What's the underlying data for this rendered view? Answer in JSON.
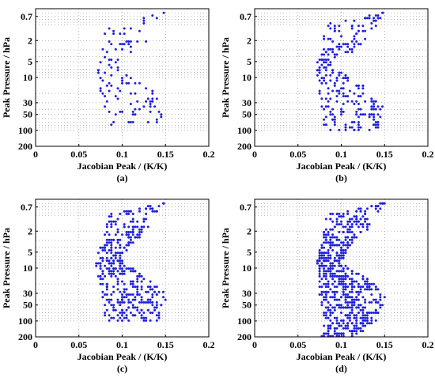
{
  "chart_data": [
    {
      "type": "scatter",
      "caption": "(a)",
      "xlabel": "Jacobian Peak / (K/K)",
      "ylabel": "Peak Pressure / hPa",
      "xlim": [
        0,
        0.2
      ],
      "ylim": [
        200,
        0.5
      ],
      "y_scale": "log",
      "x_ticks": [
        "0",
        "0.05",
        "0.1",
        "0.15",
        "0.2"
      ],
      "y_ticks": [
        "0.7",
        "2",
        "5",
        "10",
        "30",
        "50",
        "100",
        "200"
      ],
      "grid": true,
      "marker_color": "#1f1fe0",
      "x_range": [
        0.07,
        0.15
      ],
      "y_range": [
        0.6,
        80
      ],
      "approx_point_count": 110
    },
    {
      "type": "scatter",
      "caption": "(b)",
      "xlabel": "Jacobian Peak / (K/K)",
      "ylabel": "Peak Pressure / hPa",
      "xlim": [
        0,
        0.2
      ],
      "ylim": [
        200,
        0.5
      ],
      "y_scale": "log",
      "x_ticks": [
        "0",
        "0.05",
        "0.1",
        "0.15",
        "0.2"
      ],
      "y_ticks": [
        "0.7",
        "2",
        "5",
        "10",
        "30",
        "50",
        "100",
        "200"
      ],
      "grid": true,
      "marker_color": "#1f1fe0",
      "x_range": [
        0.07,
        0.15
      ],
      "y_range": [
        0.6,
        100
      ],
      "approx_point_count": 260
    },
    {
      "type": "scatter",
      "caption": "(c)",
      "xlabel": "Jacobian Peak / (K/K)",
      "ylabel": "Peak Pressure / hPa",
      "xlim": [
        0,
        0.2
      ],
      "ylim": [
        200,
        0.5
      ],
      "y_scale": "log",
      "x_ticks": [
        "0",
        "0.05",
        "0.1",
        "0.15",
        "0.2"
      ],
      "y_ticks": [
        "0.7",
        "2",
        "5",
        "10",
        "30",
        "50",
        "100",
        "200"
      ],
      "grid": true,
      "marker_color": "#1f1fe0",
      "x_range": [
        0.07,
        0.15
      ],
      "y_range": [
        0.6,
        100
      ],
      "approx_point_count": 420
    },
    {
      "type": "scatter",
      "caption": "(d)",
      "xlabel": "Jacobian Peak / (K/K)",
      "ylabel": "Peak Pressure / hPa",
      "xlim": [
        0,
        0.2
      ],
      "ylim": [
        200,
        0.5
      ],
      "y_scale": "log",
      "x_ticks": [
        "0",
        "0.05",
        "0.1",
        "0.15",
        "0.2"
      ],
      "y_ticks": [
        "0.7",
        "2",
        "5",
        "10",
        "30",
        "50",
        "100",
        "200"
      ],
      "grid": true,
      "marker_color": "#1f1fe0",
      "x_range": [
        0.06,
        0.15
      ],
      "y_range": [
        0.6,
        200
      ],
      "approx_point_count": 700
    }
  ]
}
